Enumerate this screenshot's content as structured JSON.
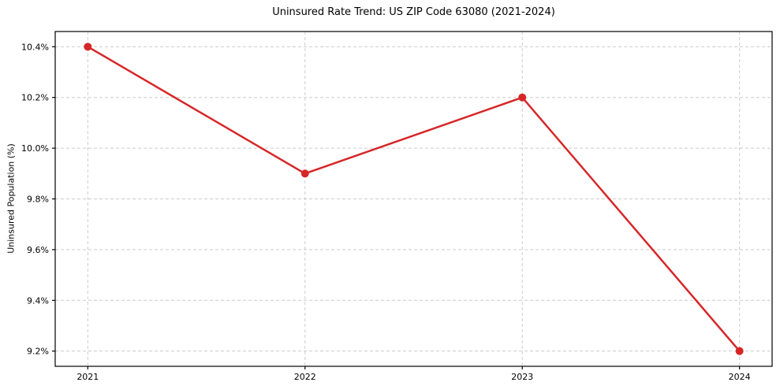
{
  "chart_data": {
    "type": "line",
    "title": "Uninsured Rate Trend: US ZIP Code 63080 (2021-2024)",
    "xlabel": "",
    "ylabel": "Uninsured Population (%)",
    "x": [
      2021,
      2022,
      2023,
      2024
    ],
    "values": [
      10.4,
      9.9,
      10.2,
      9.2
    ],
    "xticks": {
      "values": [
        2021,
        2022,
        2023,
        2024
      ],
      "labels": [
        "2021",
        "2022",
        "2023",
        "2024"
      ]
    },
    "yticks": {
      "values": [
        9.2,
        9.4,
        9.6,
        9.8,
        10.0,
        10.2,
        10.4
      ],
      "labels": [
        "9.2%",
        "9.4%",
        "9.6%",
        "9.8%",
        "10.0%",
        "10.2%",
        "10.4%"
      ]
    },
    "xlim": [
      2020.85,
      2024.15
    ],
    "ylim": [
      9.14,
      10.46
    ],
    "grid": true,
    "grid_style": "dashed",
    "legend_position": "none",
    "colors": {
      "line": "#d62728",
      "marker": "#d62728",
      "grid": "#cccccc",
      "axis": "#000000",
      "text": "#000000",
      "background": "#ffffff"
    }
  }
}
